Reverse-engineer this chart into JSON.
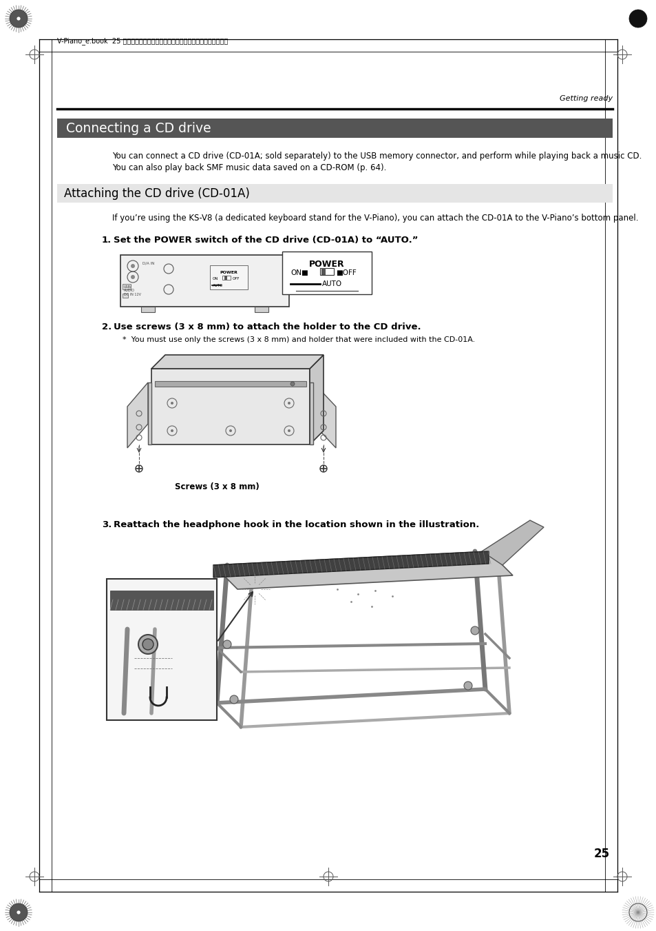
{
  "page_bg": "#ffffff",
  "top_line_text": "V-Piano_e.book  25 ページ　２００９年１月２８日　水曜日　午前９時１０分",
  "getting_ready": "Getting ready",
  "section_title": "Connecting a CD drive",
  "section_title_bg": "#555555",
  "section_title_color": "#ffffff",
  "subsection_title": "Attaching the CD drive (CD-01A)",
  "subsection_bg": "#e5e5e5",
  "para1_line1": "You can connect a CD drive (CD-01A; sold separately) to the USB memory connector, and perform while playing back a music CD.",
  "para1_line2": "You can also play back SMF music data saved on a CD-ROM (p. 64).",
  "sub_para": "If you’re using the KS-V8 (a dedicated keyboard stand for the V-Piano), you can attach the CD-01A to the V-Piano’s bottom panel.",
  "step1_bold": "Set the POWER switch of the CD drive (CD-01A) to “AUTO.”",
  "step2_bold": "Use screws (3 x 8 mm) to attach the holder to the CD drive.",
  "step2_note": "You must use only the screws (3 x 8 mm) and holder that were included with the CD-01A.",
  "screws_label": "Screws (3 x 8 mm)",
  "step3_bold": "Reattach the headphone hook in the location shown in the illustration.",
  "page_number": "25",
  "text_color": "#000000"
}
